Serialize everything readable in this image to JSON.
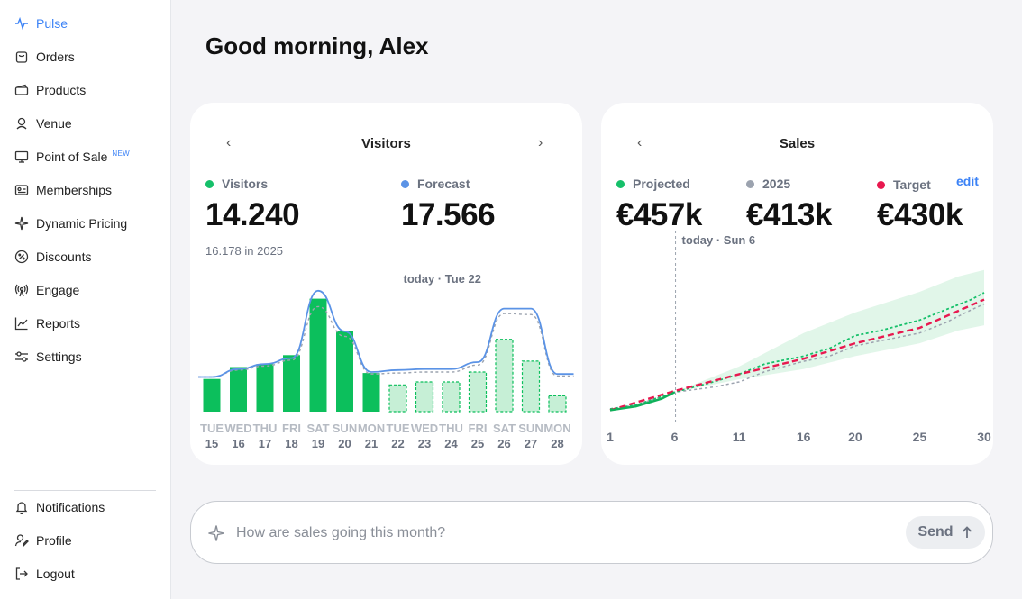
{
  "sidebar": {
    "items": [
      {
        "label": "Pulse",
        "icon": "pulse-icon",
        "active": true
      },
      {
        "label": "Orders",
        "icon": "shopping-bag-icon"
      },
      {
        "label": "Products",
        "icon": "ticket-icon"
      },
      {
        "label": "Venue",
        "icon": "location-pin-icon"
      },
      {
        "label": "Point of Sale",
        "icon": "monitor-icon",
        "badge": "NEW"
      },
      {
        "label": "Memberships",
        "icon": "id-card-icon"
      },
      {
        "label": "Dynamic Pricing",
        "icon": "sparkles-icon"
      },
      {
        "label": "Discounts",
        "icon": "discount-icon"
      },
      {
        "label": "Engage",
        "icon": "broadcast-icon"
      },
      {
        "label": "Reports",
        "icon": "chart-line-icon"
      },
      {
        "label": "Settings",
        "icon": "sliders-icon"
      }
    ],
    "bottom_items": [
      {
        "label": "Notifications",
        "icon": "bell-icon"
      },
      {
        "label": "Profile",
        "icon": "user-edit-icon"
      },
      {
        "label": "Logout",
        "icon": "logout-icon"
      }
    ]
  },
  "header": {
    "greeting": "Good morning, Alex"
  },
  "visitors_card": {
    "title": "Visitors",
    "metrics": [
      {
        "label": "Visitors",
        "value": "14.240",
        "color": "#16c06a"
      },
      {
        "label": "Forecast",
        "value": "17.566",
        "color": "#5b93e6"
      }
    ],
    "sub": "16.178 in 2025",
    "today_label": "today · Tue 22"
  },
  "sales_card": {
    "title": "Sales",
    "edit_label": "edit",
    "metrics": [
      {
        "label": "Projected",
        "value": "€457k",
        "color": "#16c06a"
      },
      {
        "label": "2025",
        "value": "€413k",
        "color": "#9ca3af"
      },
      {
        "label": "Target",
        "value": "€430k",
        "color": "#e8184f"
      }
    ],
    "today_label": "today · Sun 6"
  },
  "chat": {
    "placeholder": "How are sales going this month?",
    "send_label": "Send"
  },
  "chart_data": [
    {
      "type": "bar",
      "title": "Visitors",
      "categories": [
        "TUE 15",
        "WED 16",
        "THU 17",
        "FRI 18",
        "SAT 19",
        "SUN 20",
        "MON 21",
        "TUE 22",
        "WED 23",
        "THU 24",
        "FRI 25",
        "SAT 26",
        "SUN 27",
        "MON 28"
      ],
      "day_labels": [
        "TUE",
        "WED",
        "THU",
        "FRI",
        "SAT",
        "SUN",
        "MON",
        "TUE",
        "WED",
        "THU",
        "FRI",
        "SAT",
        "SUN",
        "MON"
      ],
      "date_labels": [
        "15",
        "16",
        "17",
        "18",
        "19",
        "20",
        "21",
        "22",
        "23",
        "24",
        "25",
        "26",
        "27",
        "28"
      ],
      "series": [
        {
          "values": [
            330,
            450,
            480,
            570,
            1140,
            810,
            390,
            null,
            null,
            null,
            null,
            null,
            null,
            null
          ],
          "style": "solid",
          "color": "#0cbf5c"
        },
        {
          "values": [
            null,
            null,
            null,
            null,
            null,
            null,
            null,
            270,
            300,
            300,
            400,
            730,
            510,
            160
          ],
          "style": "dashed",
          "color": "#0cbf5c"
        },
        {
          "type": "line",
          "values": [
            350,
            430,
            480,
            540,
            1220,
            810,
            400,
            420,
            430,
            430,
            500,
            1040,
            1040,
            380
          ],
          "color": "#5b93e6"
        },
        {
          "type": "line",
          "values": [
            350,
            420,
            460,
            520,
            1060,
            760,
            380,
            390,
            400,
            400,
            470,
            990,
            980,
            360
          ],
          "color": "#9ca3af",
          "style": "dashed"
        }
      ],
      "ylim": [
        0,
        1300
      ],
      "today_index": 7
    },
    {
      "type": "line",
      "title": "Sales",
      "x": [
        1,
        6,
        11,
        16,
        20,
        25,
        30
      ],
      "x_ticks": [
        "1",
        "6",
        "11",
        "16",
        "20",
        "25",
        "30"
      ],
      "series": [
        {
          "name": "Projected",
          "color": "#16c06a",
          "style": "dashed",
          "points": [
            [
              1,
              5
            ],
            [
              3,
              20
            ],
            [
              6,
              70
            ],
            [
              9,
              110
            ],
            [
              11,
              140
            ],
            [
              13,
              180
            ],
            [
              16,
              210
            ],
            [
              18,
              240
            ],
            [
              20,
              290
            ],
            [
              22,
              310
            ],
            [
              25,
              350
            ],
            [
              27,
              390
            ],
            [
              29,
              430
            ],
            [
              30,
              457
            ]
          ]
        },
        {
          "name": "2025",
          "color": "#9ca3af",
          "style": "dashed",
          "points": [
            [
              1,
              5
            ],
            [
              3,
              20
            ],
            [
              6,
              70
            ],
            [
              9,
              90
            ],
            [
              11,
              110
            ],
            [
              13,
              150
            ],
            [
              16,
              190
            ],
            [
              18,
              210
            ],
            [
              20,
              250
            ],
            [
              22,
              270
            ],
            [
              25,
              300
            ],
            [
              27,
              340
            ],
            [
              29,
              390
            ],
            [
              30,
              413
            ]
          ]
        },
        {
          "name": "Target",
          "color": "#e8184f",
          "style": "dashed",
          "points": [
            [
              1,
              0
            ],
            [
              6,
              75
            ],
            [
              11,
              140
            ],
            [
              16,
              200
            ],
            [
              20,
              260
            ],
            [
              25,
              320
            ],
            [
              30,
              430
            ]
          ]
        }
      ],
      "actual_points": [
        [
          1,
          0
        ],
        [
          3,
          15
        ],
        [
          5,
          45
        ],
        [
          6,
          70
        ]
      ],
      "band_upper": [
        [
          6,
          70
        ],
        [
          11,
          170
        ],
        [
          16,
          300
        ],
        [
          20,
          380
        ],
        [
          25,
          460
        ],
        [
          28,
          520
        ],
        [
          30,
          545
        ]
      ],
      "band_lower": [
        [
          6,
          70
        ],
        [
          11,
          120
        ],
        [
          16,
          160
        ],
        [
          20,
          210
        ],
        [
          25,
          260
        ],
        [
          28,
          310
        ],
        [
          30,
          330
        ]
      ],
      "ylim": [
        -30,
        600
      ],
      "today_x": 6
    }
  ]
}
